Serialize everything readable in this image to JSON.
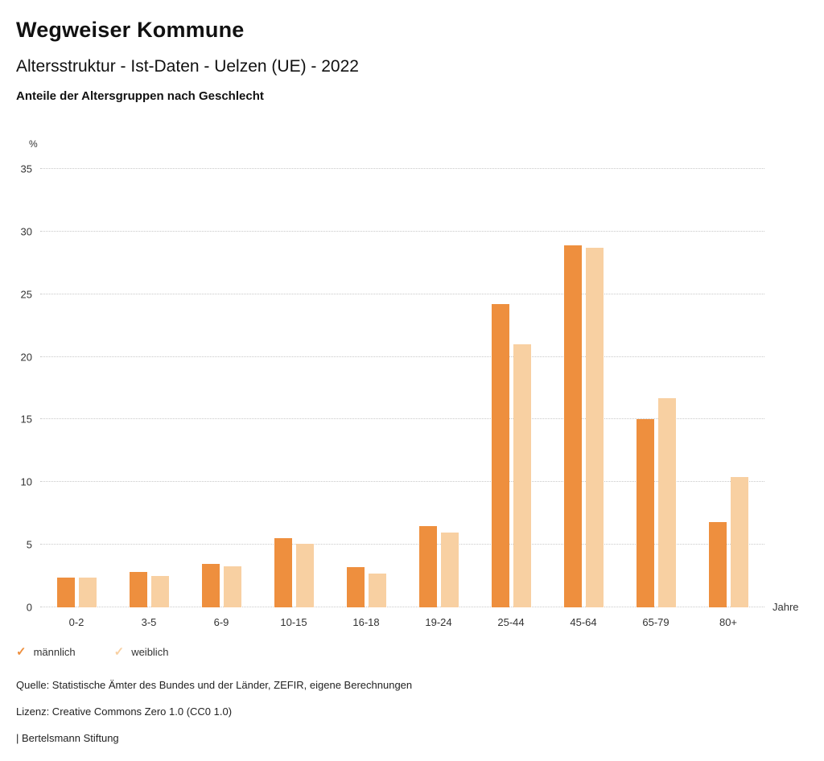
{
  "header": {
    "title": "Wegweiser Kommune",
    "subtitle": "Altersstruktur - Ist-Daten - Uelzen (UE) - 2022",
    "chart_title": "Anteile der Altersgruppen nach Geschlecht"
  },
  "chart_data": {
    "type": "bar",
    "categories": [
      "0-2",
      "3-5",
      "6-9",
      "10-15",
      "16-18",
      "19-24",
      "25-44",
      "45-64",
      "65-79",
      "80+"
    ],
    "series": [
      {
        "name": "männlich",
        "color": "#ee8f3e",
        "values": [
          2.4,
          2.8,
          3.5,
          5.5,
          3.2,
          6.5,
          24.2,
          28.9,
          15.0,
          6.8
        ]
      },
      {
        "name": "weiblich",
        "color": "#f8d0a2",
        "values": [
          2.4,
          2.5,
          3.3,
          5.1,
          2.7,
          6.0,
          21.0,
          28.7,
          16.7,
          10.4
        ]
      }
    ],
    "title": "Anteile der Altersgruppen nach Geschlecht",
    "xlabel": "Jahre",
    "ylabel": "%",
    "ylim": [
      0,
      35
    ],
    "ytick_step": 5,
    "grid": "horizontal-dotted",
    "legend_position": "bottom-left",
    "legend_icon": "check-icon"
  },
  "footer": {
    "source": "Quelle: Statistische Ämter des Bundes und der Länder, ZEFIR, eigene Berechnungen",
    "license": "Lizenz: Creative Commons Zero 1.0 (CC0 1.0)",
    "attribution": "| Bertelsmann Stiftung"
  }
}
